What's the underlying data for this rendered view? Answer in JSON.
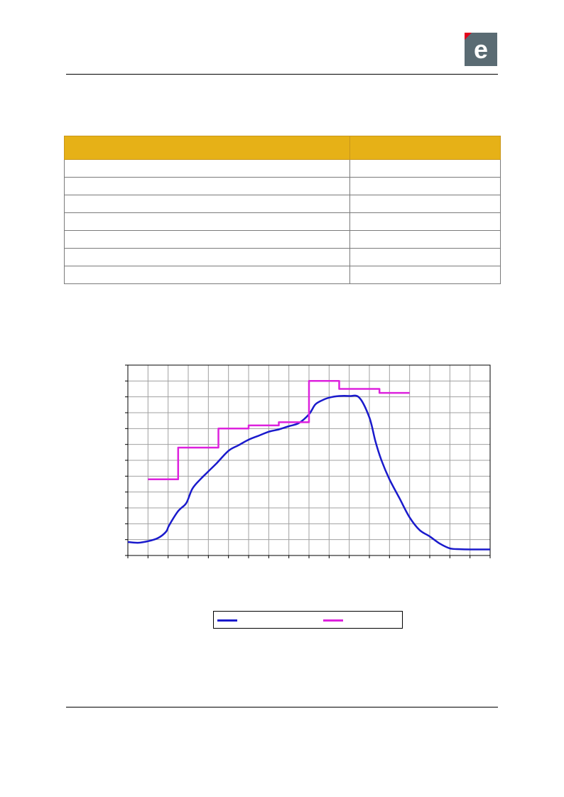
{
  "header": {
    "logo_icon": "e-logo-icon",
    "logo_letter": "e",
    "logo_color": "#5a6b73",
    "logo_accent": "#e3001b"
  },
  "table": {
    "header_color": "#e6b117",
    "columns": [
      "",
      ""
    ],
    "rows": [
      [
        "",
        ""
      ],
      [
        "",
        ""
      ],
      [
        "",
        ""
      ],
      [
        "",
        ""
      ],
      [
        "",
        ""
      ],
      [
        "",
        ""
      ],
      [
        "",
        ""
      ]
    ]
  },
  "chart_data": {
    "type": "line",
    "title": "",
    "xlabel": "",
    "ylabel": "",
    "xlim": [
      0,
      18
    ],
    "ylim": [
      0,
      12
    ],
    "grid": true,
    "legend_position": "bottom",
    "x_tick_count": 18,
    "y_tick_count": 12,
    "series": [
      {
        "name": "",
        "color": "#1a1acc",
        "style": "solid",
        "x": [
          0,
          0.5,
          1,
          1.5,
          1.9,
          2.05,
          2.5,
          2.9,
          3.2,
          3.6,
          4,
          4.4,
          5,
          5.5,
          6,
          6.5,
          7,
          7.5,
          8,
          8.5,
          9,
          9.3,
          9.6,
          10,
          10.5,
          11,
          11.5,
          12,
          12.3,
          12.6,
          13,
          13.5,
          14,
          14.5,
          15,
          15.5,
          16,
          16.5,
          17,
          17.5,
          18
        ],
        "values": [
          0.85,
          0.8,
          0.9,
          1.1,
          1.5,
          1.9,
          2.8,
          3.3,
          4.2,
          4.8,
          5.3,
          5.8,
          6.6,
          6.95,
          7.3,
          7.55,
          7.8,
          7.95,
          8.15,
          8.35,
          8.9,
          9.5,
          9.75,
          9.95,
          10.05,
          10.05,
          9.95,
          8.7,
          7.2,
          6.0,
          4.8,
          3.6,
          2.4,
          1.6,
          1.2,
          0.75,
          0.45,
          0.4,
          0.38,
          0.38,
          0.38
        ]
      },
      {
        "name": "",
        "color": "#dd22dd",
        "style": "step",
        "x": [
          1,
          2.5,
          2.5,
          4.5,
          4.5,
          6,
          6,
          7.5,
          7.5,
          9,
          9,
          10.5,
          10.5,
          12.5,
          12.5,
          14
        ],
        "values": [
          4.8,
          4.8,
          6.8,
          6.8,
          8.0,
          8.0,
          8.2,
          8.2,
          8.4,
          8.4,
          11.0,
          11.0,
          10.5,
          10.5,
          10.25,
          10.25
        ]
      }
    ]
  }
}
